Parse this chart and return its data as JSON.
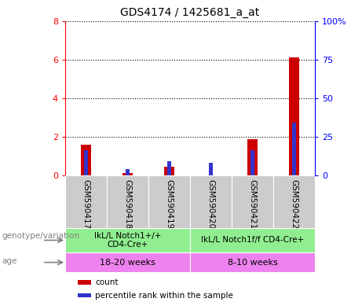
{
  "title": "GDS4174 / 1425681_a_at",
  "samples": [
    "GSM590417",
    "GSM590418",
    "GSM590419",
    "GSM590420",
    "GSM590421",
    "GSM590422"
  ],
  "count_values": [
    1.6,
    0.12,
    0.45,
    0.0,
    1.85,
    6.1
  ],
  "percentile_values": [
    16,
    4,
    9,
    8,
    16,
    34
  ],
  "ylim_left": [
    0,
    8
  ],
  "ylim_right": [
    0,
    100
  ],
  "yticks_left": [
    0,
    2,
    4,
    6,
    8
  ],
  "yticks_right": [
    0,
    25,
    50,
    75,
    100
  ],
  "ytick_labels_right": [
    "0",
    "25",
    "50",
    "75",
    "100%"
  ],
  "count_color": "#cc0000",
  "percentile_color": "#3333cc",
  "grid_color": "black",
  "sample_box_color": "#cccccc",
  "genotype_label": "genotype/variation",
  "age_label": "age",
  "geno_group1_label": "IkL/L Notch1+/+\nCD4-Cre+",
  "geno_group2_label": "IkL/L Notch1f/f CD4-Cre+",
  "age_group1_label": "18-20 weeks",
  "age_group2_label": "8-10 weeks",
  "geno_color": "#90ee90",
  "age_color": "#ee82ee",
  "legend_count": "count",
  "legend_percentile": "percentile rank within the sample",
  "bar_width": 0.25
}
